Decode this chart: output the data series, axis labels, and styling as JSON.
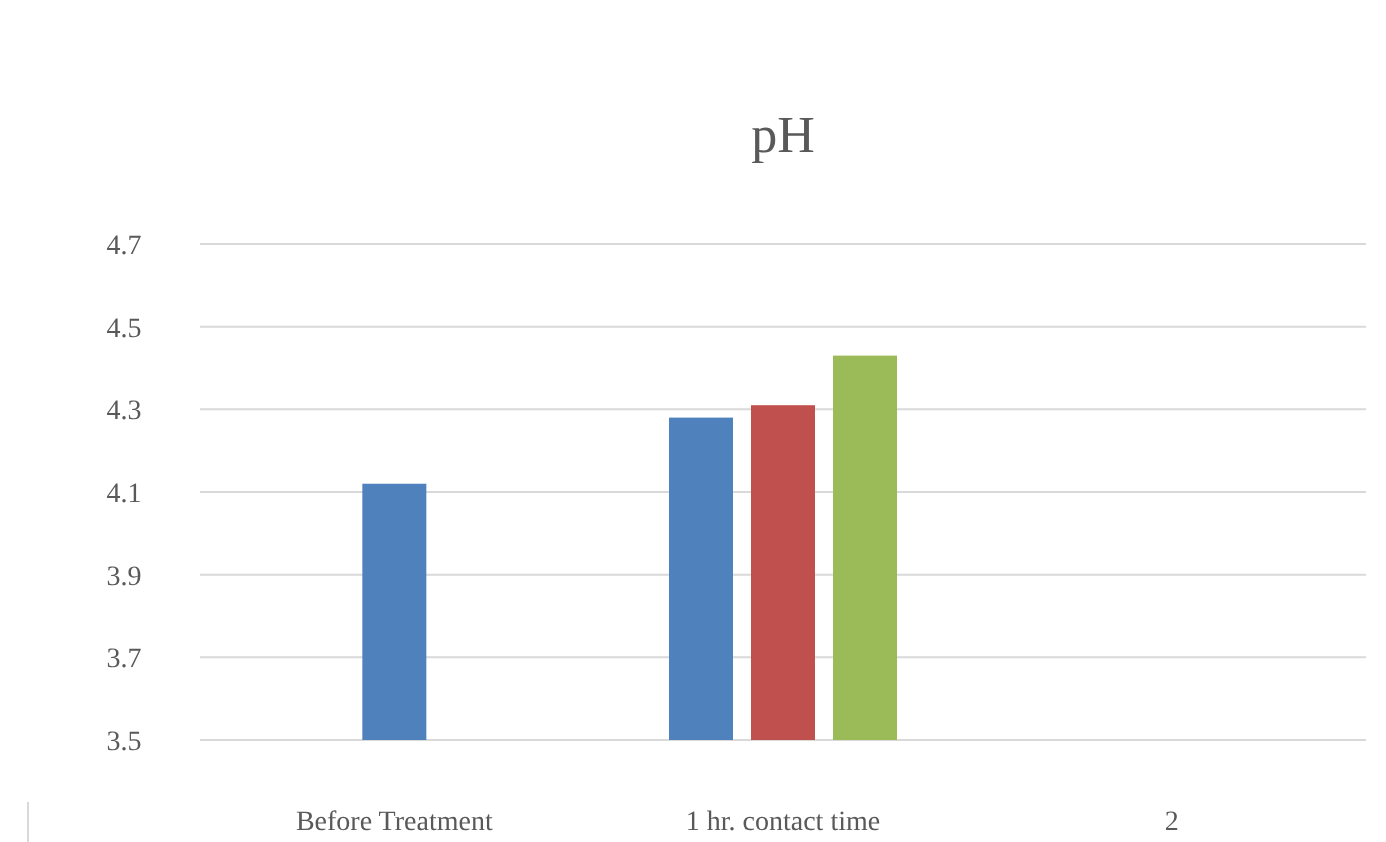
{
  "chart_data": {
    "type": "bar",
    "title": "pH",
    "categories": [
      "Before Treatment",
      "1 hr. contact time",
      "2"
    ],
    "series": [
      {
        "color": "#4f81bd",
        "values": [
          4.12,
          4.28,
          null
        ]
      },
      {
        "color": "#c0504d",
        "values": [
          null,
          4.31,
          null
        ]
      },
      {
        "color": "#9bbb59",
        "values": [
          null,
          4.43,
          null
        ]
      }
    ],
    "ylim": [
      3.5,
      4.7
    ],
    "yticks": [
      3.5,
      3.7,
      3.9,
      4.1,
      4.3,
      4.5,
      4.7
    ],
    "grid": "y"
  }
}
